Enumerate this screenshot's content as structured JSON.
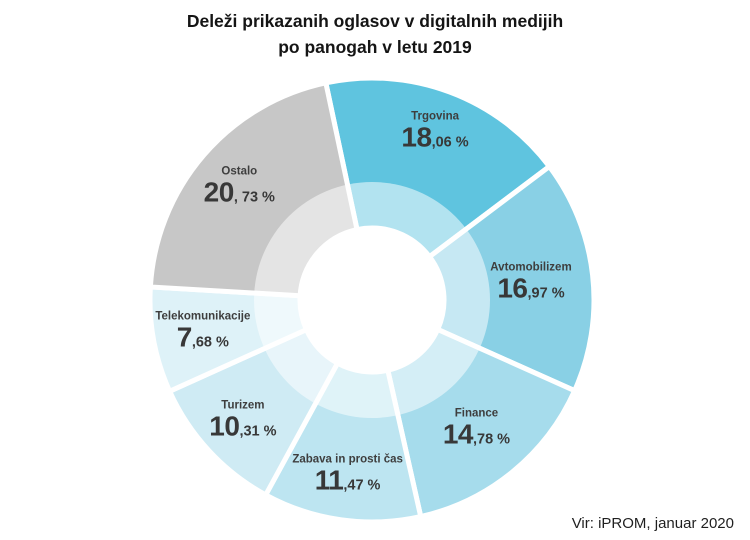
{
  "title": {
    "line1": "Deleži prikazanih oglasov v digitalnih medijih",
    "line2": "po panogah v letu 2019"
  },
  "source": "Vir: iPROM, januar 2020",
  "chart_data": {
    "type": "pie",
    "subtype": "donut",
    "title": "Deleži prikazanih oglasov v digitalnih medijih po panogah v letu 2019",
    "direction": "clockwise",
    "start_angle_deg_from_north": -12,
    "legend": "none",
    "inner_hole": true,
    "inner_highlight_ring": true,
    "categories": [
      "Trgovina",
      "Avtomobilizem",
      "Finance",
      "Zabava in prosti čas",
      "Turizem",
      "Telekomunikacije",
      "Ostalo"
    ],
    "values": [
      18.06,
      16.97,
      14.78,
      11.47,
      10.31,
      7.68,
      20.73
    ],
    "slices": [
      {
        "label": "Trgovina",
        "value": 18.06,
        "display_int": "18",
        "display_rest": ",06 %",
        "color": "#5fc4df"
      },
      {
        "label": "Avtomobilizem",
        "value": 16.97,
        "display_int": "16",
        "display_rest": ",97 %",
        "color": "#89d0e5"
      },
      {
        "label": "Finance",
        "value": 14.78,
        "display_int": "14",
        "display_rest": ",78 %",
        "color": "#a6dcec"
      },
      {
        "label": "Zabava in prosti čas",
        "value": 11.47,
        "display_int": "11",
        "display_rest": ",47 %",
        "color": "#bde5f1"
      },
      {
        "label": "Turizem",
        "value": 10.31,
        "display_int": "10",
        "display_rest": ",31 %",
        "color": "#cfebf4"
      },
      {
        "label": "Telekomunikacije",
        "value": 7.68,
        "display_int": "7",
        "display_rest": ",68 %",
        "color": "#def2f8"
      },
      {
        "label": "Ostalo",
        "value": 20.73,
        "display_int": "20",
        "display_rest": ", 73 %",
        "color": "#c7c7c7"
      }
    ]
  }
}
